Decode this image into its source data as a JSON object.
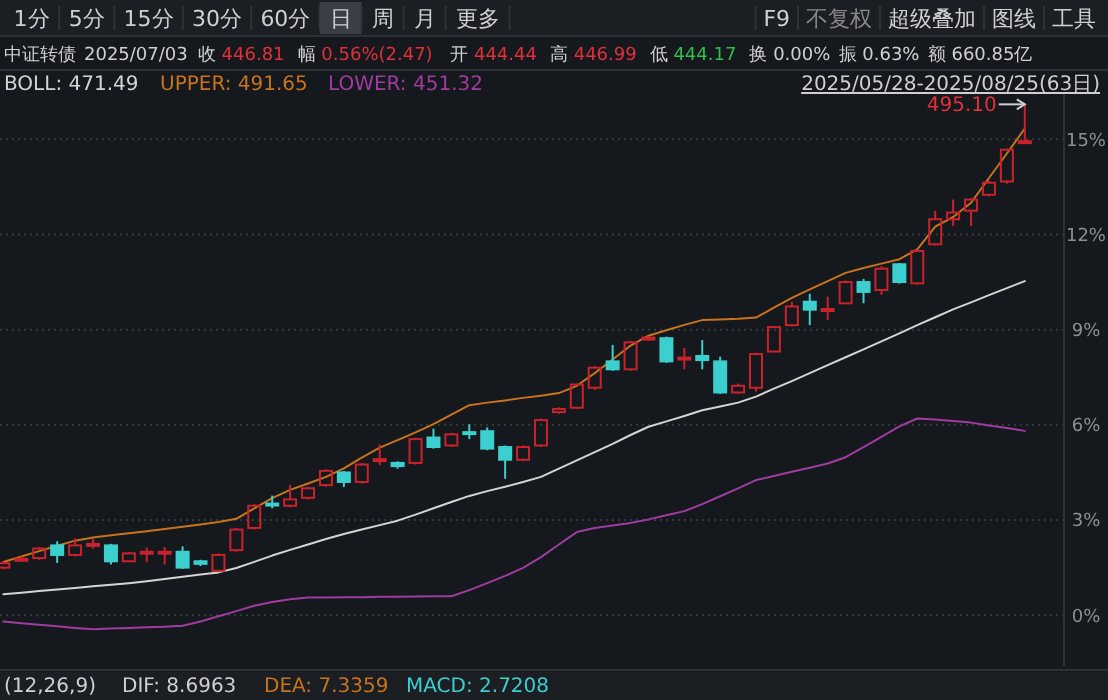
{
  "chart_data": {
    "type": "candlestick",
    "title": "中证转债",
    "categories": [
      null,
      null,
      null,
      null,
      null,
      null,
      null,
      null,
      null,
      null,
      null,
      null,
      null,
      null,
      null,
      null,
      null,
      null,
      null,
      null,
      null,
      null,
      null,
      null,
      null,
      null,
      null,
      null,
      null,
      null,
      null,
      null,
      null,
      null,
      null,
      null,
      null,
      null,
      null,
      null,
      null,
      null,
      null,
      null,
      null,
      null,
      null,
      null,
      null,
      null,
      null,
      null,
      null,
      null,
      null,
      null,
      null,
      null
    ],
    "ohlc": [
      [
        1.5,
        1.7,
        1.45,
        1.64
      ],
      [
        1.72,
        1.85,
        1.7,
        1.78
      ],
      [
        1.8,
        2.15,
        1.75,
        2.1
      ],
      [
        2.2,
        2.33,
        1.65,
        1.9
      ],
      [
        1.9,
        2.42,
        1.85,
        2.2
      ],
      [
        2.22,
        2.4,
        2.1,
        2.25
      ],
      [
        2.2,
        2.25,
        1.6,
        1.7
      ],
      [
        1.7,
        2.0,
        1.68,
        1.95
      ],
      [
        1.98,
        2.13,
        1.67,
        2.0
      ],
      [
        1.98,
        2.15,
        1.6,
        2.0
      ],
      [
        2.0,
        2.17,
        1.46,
        1.5
      ],
      [
        1.7,
        1.75,
        1.55,
        1.62
      ],
      [
        1.4,
        1.95,
        1.38,
        1.9
      ],
      [
        2.05,
        2.75,
        2.0,
        2.7
      ],
      [
        2.75,
        3.5,
        2.7,
        3.45
      ],
      [
        3.52,
        3.77,
        3.37,
        3.48
      ],
      [
        3.45,
        4.1,
        3.4,
        3.65
      ],
      [
        3.7,
        4.05,
        3.65,
        4.0
      ],
      [
        4.1,
        4.6,
        4.05,
        4.55
      ],
      [
        4.5,
        4.55,
        4.04,
        4.2
      ],
      [
        4.2,
        4.8,
        4.15,
        4.75
      ],
      [
        4.88,
        5.38,
        4.73,
        4.92
      ],
      [
        4.8,
        4.85,
        4.62,
        4.7
      ],
      [
        4.8,
        5.6,
        4.75,
        5.55
      ],
      [
        5.6,
        5.88,
        5.25,
        5.3
      ],
      [
        5.35,
        5.75,
        5.3,
        5.7
      ],
      [
        5.77,
        6.02,
        5.55,
        5.73
      ],
      [
        5.8,
        5.92,
        5.2,
        5.25
      ],
      [
        5.3,
        5.35,
        4.3,
        4.9
      ],
      [
        4.9,
        5.35,
        4.85,
        5.3
      ],
      [
        5.35,
        6.2,
        5.3,
        6.15
      ],
      [
        6.4,
        6.55,
        6.35,
        6.5
      ],
      [
        6.54,
        7.3,
        6.5,
        7.27
      ],
      [
        7.17,
        7.85,
        7.1,
        7.8
      ],
      [
        8.0,
        8.52,
        7.7,
        7.75
      ],
      [
        7.75,
        8.65,
        7.7,
        8.6
      ],
      [
        8.7,
        8.8,
        8.65,
        8.75
      ],
      [
        8.73,
        8.78,
        7.95,
        8.0
      ],
      [
        8.08,
        8.42,
        7.75,
        8.12
      ],
      [
        8.17,
        8.67,
        7.75,
        8.04
      ],
      [
        8.0,
        8.15,
        6.97,
        7.02
      ],
      [
        7.02,
        7.3,
        6.98,
        7.23
      ],
      [
        7.17,
        8.27,
        7.05,
        8.23
      ],
      [
        8.31,
        9.12,
        8.28,
        9.08
      ],
      [
        9.14,
        9.88,
        9.1,
        9.73
      ],
      [
        9.88,
        10.13,
        9.14,
        9.63
      ],
      [
        9.6,
        10.04,
        9.31,
        9.65
      ],
      [
        9.83,
        10.55,
        9.8,
        10.5
      ],
      [
        10.5,
        10.6,
        9.83,
        10.19
      ],
      [
        10.25,
        11.0,
        10.1,
        10.92
      ],
      [
        11.06,
        11.1,
        10.45,
        10.5
      ],
      [
        10.46,
        11.52,
        10.42,
        11.48
      ],
      [
        11.69,
        12.75,
        11.65,
        12.48
      ],
      [
        12.48,
        13.1,
        12.27,
        12.69
      ],
      [
        12.75,
        13.15,
        12.27,
        13.1
      ],
      [
        13.25,
        13.7,
        13.2,
        13.63
      ],
      [
        13.67,
        14.7,
        13.6,
        14.67
      ],
      [
        14.92,
        16.1,
        14.9,
        14.94
      ]
    ],
    "colors": [
      "#c8232c",
      "#c8232c",
      "#c8232c",
      "#3ccfcf",
      "#c8232c",
      "#c8232c",
      "#3ccfcf",
      "#c8232c",
      "#c8232c",
      "#c8232c",
      "#3ccfcf",
      "#3ccfcf",
      "#c8232c",
      "#c8232c",
      "#c8232c",
      "#3ccfcf",
      "#c8232c",
      "#c8232c",
      "#c8232c",
      "#3ccfcf",
      "#c8232c",
      "#c8232c",
      "#3ccfcf",
      "#c8232c",
      "#3ccfcf",
      "#c8232c",
      "#3ccfcf",
      "#3ccfcf",
      "#3ccfcf",
      "#c8232c",
      "#c8232c",
      "#c8232c",
      "#c8232c",
      "#c8232c",
      "#3ccfcf",
      "#c8232c",
      "#c8232c",
      "#3ccfcf",
      "#c8232c",
      "#3ccfcf",
      "#3ccfcf",
      "#c8232c",
      "#c8232c",
      "#c8232c",
      "#c8232c",
      "#3ccfcf",
      "#c8232c",
      "#c8232c",
      "#3ccfcf",
      "#c8232c",
      "#3ccfcf",
      "#c8232c",
      "#c8232c",
      "#c8232c",
      "#c8232c",
      "#c8232c",
      "#c8232c",
      "#c8232c"
    ],
    "series": [
      {
        "type": "line",
        "name": "BOLL: 471.49",
        "color": "#d4d4d4",
        "values": [
          0.66,
          0.71,
          0.76,
          0.81,
          0.86,
          0.91,
          0.96,
          1.01,
          1.07,
          1.14,
          1.21,
          1.28,
          1.35,
          1.49,
          1.68,
          1.88,
          2.06,
          2.23,
          2.4,
          2.56,
          2.7,
          2.84,
          2.98,
          3.17,
          3.37,
          3.57,
          3.76,
          3.91,
          4.05,
          4.2,
          4.36,
          4.62,
          4.88,
          5.14,
          5.4,
          5.68,
          5.94,
          6.11,
          6.28,
          6.46,
          6.58,
          6.7,
          6.89,
          7.14,
          7.38,
          7.63,
          7.88,
          8.13,
          8.38,
          8.63,
          8.88,
          9.14,
          9.39,
          9.64,
          9.86,
          10.09,
          10.31,
          10.53
        ]
      },
      {
        "type": "line",
        "name": "UPPER: 491.65",
        "color": "#c8741c",
        "values": [
          1.68,
          1.85,
          2.02,
          2.19,
          2.35,
          2.45,
          2.52,
          2.58,
          2.65,
          2.72,
          2.79,
          2.86,
          2.94,
          3.04,
          3.37,
          3.69,
          3.95,
          4.15,
          4.36,
          4.63,
          4.97,
          5.28,
          5.52,
          5.76,
          6.02,
          6.32,
          6.62,
          6.7,
          6.77,
          6.85,
          6.92,
          7.0,
          7.23,
          7.63,
          8.06,
          8.5,
          8.81,
          8.98,
          9.15,
          9.3,
          9.32,
          9.34,
          9.38,
          9.69,
          10.0,
          10.27,
          10.53,
          10.79,
          10.94,
          11.08,
          11.22,
          11.53,
          12.25,
          12.55,
          13.0,
          13.78,
          14.55,
          15.34
        ]
      },
      {
        "type": "line",
        "name": "LOWER: 451.32",
        "color": "#a03ca0",
        "values": [
          -0.2,
          -0.25,
          -0.3,
          -0.35,
          -0.4,
          -0.44,
          -0.42,
          -0.4,
          -0.38,
          -0.36,
          -0.33,
          -0.2,
          -0.03,
          0.13,
          0.3,
          0.42,
          0.5,
          0.56,
          0.56,
          0.57,
          0.57,
          0.58,
          0.58,
          0.59,
          0.6,
          0.6,
          0.79,
          1.01,
          1.24,
          1.49,
          1.83,
          2.23,
          2.62,
          2.75,
          2.83,
          2.91,
          3.02,
          3.15,
          3.28,
          3.5,
          3.75,
          4.0,
          4.26,
          4.39,
          4.52,
          4.65,
          4.78,
          4.98,
          5.3,
          5.62,
          5.95,
          6.2,
          6.17,
          6.12,
          6.07,
          5.98,
          5.9,
          5.81
        ]
      }
    ],
    "ylim": [
      -1.6,
      16.3
    ],
    "yticks": [
      {
        "value": 0,
        "label": "0%"
      },
      {
        "value": 3,
        "label": "3%"
      },
      {
        "value": 6,
        "label": "6%"
      },
      {
        "value": 9,
        "label": "9%"
      },
      {
        "value": 12,
        "label": "12%"
      },
      {
        "value": 15,
        "label": "15%"
      }
    ],
    "grid": "y",
    "legend": "top left",
    "annotations": [
      "1分",
      "5分",
      "15分",
      "30分",
      "60分",
      "日",
      "周",
      "月",
      "更多",
      "F9",
      "不复权",
      "超级叠加",
      "图线",
      "工具",
      "2025/07/03",
      "收 446.81",
      "幅 0.56%(2.47)",
      "开 444.44",
      "高 446.99",
      "低 444.17",
      "换 0.00%",
      "振 0.63%",
      "额 660.85亿",
      "2025/05/28-2025/08/25(63日)",
      "(12,26,9)",
      "DIF: 8.6963",
      "DEA: 7.3359",
      "MACD: 2.7208",
      "495.10"
    ]
  }
}
